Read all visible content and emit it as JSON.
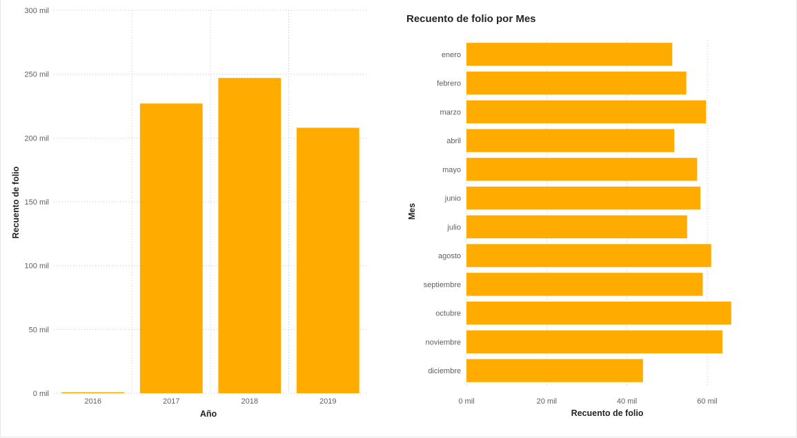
{
  "colors": {
    "bar": "#FFAB00",
    "grid": "#c8c6c4",
    "text": "#252423",
    "tick": "#605e5c"
  },
  "chart_data": [
    {
      "type": "bar",
      "title": "",
      "xlabel": "Año",
      "ylabel": "Recuento de folio",
      "categories": [
        "2016",
        "2017",
        "2018",
        "2019"
      ],
      "values": [
        500,
        227000,
        247000,
        208000
      ],
      "ylim": [
        0,
        300000
      ],
      "yticks": [
        0,
        50000,
        100000,
        150000,
        200000,
        250000,
        300000
      ],
      "ytick_labels": [
        "0 mil",
        "50 mil",
        "100 mil",
        "150 mil",
        "200 mil",
        "250 mil",
        "300 mil"
      ],
      "grid": true
    },
    {
      "type": "bar",
      "orientation": "horizontal",
      "title": "Recuento de folio por Mes",
      "xlabel": "Recuento de folio",
      "ylabel": "Mes",
      "categories": [
        "enero",
        "febrero",
        "marzo",
        "abril",
        "mayo",
        "junio",
        "julio",
        "agosto",
        "septiembre",
        "octubre",
        "noviembre",
        "diciembre"
      ],
      "values": [
        51300,
        54800,
        59700,
        51800,
        57500,
        58300,
        55000,
        61000,
        58900,
        66000,
        63800,
        44000
      ],
      "xlim": [
        0,
        70000
      ],
      "xticks": [
        0,
        20000,
        40000,
        60000
      ],
      "xtick_labels": [
        "0 mil",
        "20 mil",
        "40 mil",
        "60 mil"
      ],
      "grid": true
    }
  ]
}
